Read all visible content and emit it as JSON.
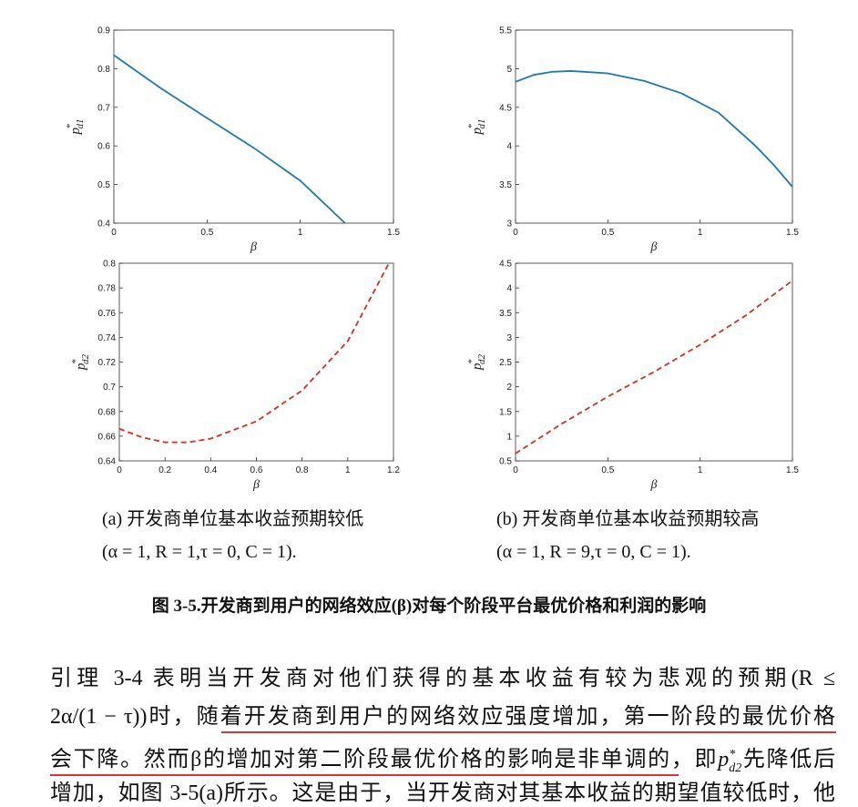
{
  "chart_data": [
    {
      "type": "line",
      "xlabel": "β",
      "ylabel_base": "p",
      "ylabel_sup": "*",
      "ylabel_sub": "d1",
      "x": [
        0,
        0.25,
        0.5,
        0.75,
        1,
        1.24
      ],
      "series": [
        {
          "color": "#1f77b4",
          "line_style": "solid",
          "values": [
            0.835,
            0.75,
            0.672,
            0.595,
            0.51,
            0.4
          ]
        }
      ],
      "xlim": [
        0,
        1.5
      ],
      "xticks": [
        0,
        0.5,
        1,
        1.5
      ],
      "ylim": [
        0.4,
        0.9
      ],
      "yticks": [
        0.4,
        0.5,
        0.6,
        0.7,
        0.8,
        0.9
      ]
    },
    {
      "type": "line",
      "xlabel": "β",
      "ylabel_base": "p",
      "ylabel_sup": "*",
      "ylabel_sub": "d1",
      "x": [
        0,
        0.1,
        0.2,
        0.3,
        0.5,
        0.7,
        0.9,
        1.1,
        1.3,
        1.4,
        1.5
      ],
      "series": [
        {
          "color": "#1f77b4",
          "line_style": "solid",
          "values": [
            4.83,
            4.92,
            4.96,
            4.97,
            4.94,
            4.84,
            4.68,
            4.43,
            4.0,
            3.75,
            3.47
          ]
        }
      ],
      "xlim": [
        0,
        1.5
      ],
      "xticks": [
        0,
        0.5,
        1,
        1.5
      ],
      "ylim": [
        3,
        5.5
      ],
      "yticks": [
        3,
        3.5,
        4,
        4.5,
        5,
        5.5
      ]
    },
    {
      "type": "line",
      "xlabel": "β",
      "ylabel_base": "p",
      "ylabel_sup": "*",
      "ylabel_sub": "d2",
      "x": [
        0,
        0.1,
        0.2,
        0.3,
        0.4,
        0.6,
        0.8,
        1.0,
        1.18
      ],
      "series": [
        {
          "color": "#d62e1f",
          "line_style": "dashed",
          "values": [
            0.666,
            0.659,
            0.655,
            0.655,
            0.658,
            0.672,
            0.697,
            0.737,
            0.8
          ]
        }
      ],
      "xlim": [
        0,
        1.2
      ],
      "xticks": [
        0,
        0.2,
        0.4,
        0.6,
        0.8,
        1,
        1.2
      ],
      "ylim": [
        0.64,
        0.8
      ],
      "yticks": [
        0.64,
        0.66,
        0.68,
        0.7,
        0.72,
        0.74,
        0.76,
        0.78,
        0.8
      ]
    },
    {
      "type": "line",
      "xlabel": "β",
      "ylabel_base": "p",
      "ylabel_sup": "*",
      "ylabel_sub": "d2",
      "x": [
        0,
        0.25,
        0.5,
        0.75,
        1,
        1.25,
        1.5
      ],
      "series": [
        {
          "color": "#d62e1f",
          "line_style": "dashed",
          "values": [
            0.65,
            1.25,
            1.8,
            2.3,
            2.85,
            3.45,
            4.15
          ]
        }
      ],
      "xlim": [
        0,
        1.5
      ],
      "xticks": [
        0,
        0.5,
        1,
        1.5
      ],
      "ylim": [
        0.5,
        4.5
      ],
      "yticks": [
        0.5,
        1,
        1.5,
        2,
        2.5,
        3,
        3.5,
        4,
        4.5
      ]
    }
  ],
  "captions": [
    {
      "title": "(a) 开发商单位基本收益预期较低",
      "params": "(α = 1, R = 1,τ = 0, C = 1)."
    },
    {
      "title": "(b) 开发商单位基本收益预期较高",
      "params": "(α = 1, R = 9,τ = 0, C = 1)."
    }
  ],
  "figure_title": "图 3-5.开发商到用户的网络效应(β)对每个阶段平台最优价格和利润的影响",
  "paragraph": {
    "line1": "引理 3-4 表明当开发商对他们获得的基本收益有较为悲观的预期(R ≤",
    "line2": "2α/(1 − τ))时，随着开发商到用户的网络效应强度增加，第一阶段的最优价格",
    "line3_before": "会下降。然而β的增加对第二阶段最优价格的影响是非单调的，即",
    "line3_base": "p",
    "line3_sup": "*",
    "line3_sub": "d2",
    "line3_after": "先降低后",
    "line4": "增加，如图 3-5(a)所示。这是由于，当开发商对其基本收益的期望值较低时，他"
  }
}
